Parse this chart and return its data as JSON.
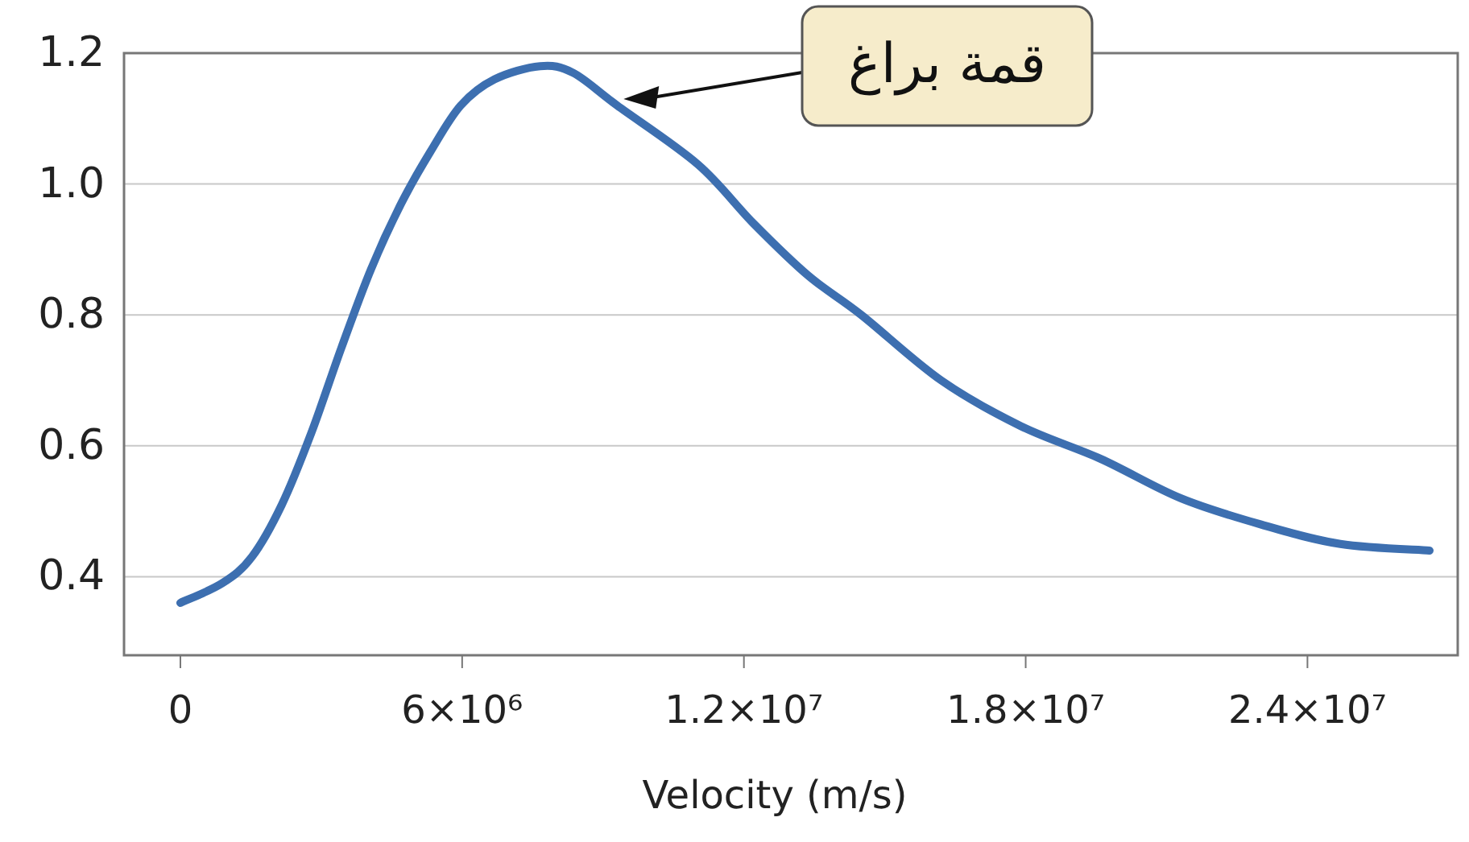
{
  "chart_data": {
    "type": "line",
    "xlabel": "Velocity (m/s)",
    "x": [
      0,
      890000,
      1520000,
      2160000,
      2790000,
      3430000,
      4060000,
      4700000,
      5330000,
      5970000,
      6690000,
      7660000,
      8360000,
      9300000,
      11020000,
      12200000,
      13370000,
      14500000,
      16200000,
      17900000,
      19600000,
      21300000,
      23000000,
      24700000,
      26600000
    ],
    "series": [
      {
        "color": "#3d6fb0",
        "values": [
          0.36,
          0.39,
          0.43,
          0.51,
          0.62,
          0.75,
          0.87,
          0.97,
          1.05,
          1.12,
          1.16,
          1.18,
          1.17,
          1.12,
          1.03,
          0.94,
          0.86,
          0.8,
          0.7,
          0.63,
          0.58,
          0.52,
          0.48,
          0.45,
          0.44
        ]
      }
    ],
    "xlim": [
      -1200000,
      27200000
    ],
    "ylim": [
      0.28,
      1.2
    ],
    "xticks": [
      0,
      {
        "value": 6000000,
        "label": "6×10⁶"
      },
      {
        "value": 12000000,
        "label": "1.2×10⁷"
      },
      {
        "value": 18000000,
        "label": "1.8×10⁷"
      },
      {
        "value": 24000000,
        "label": "2.4×10⁷"
      }
    ],
    "yticks": [
      0.4,
      0.6,
      0.8,
      {
        "value": 1,
        "label": "1.0"
      },
      1.2
    ],
    "grid": "y",
    "line_style": "solid",
    "marker": "none",
    "annotations": [
      "قمة براغ"
    ]
  }
}
